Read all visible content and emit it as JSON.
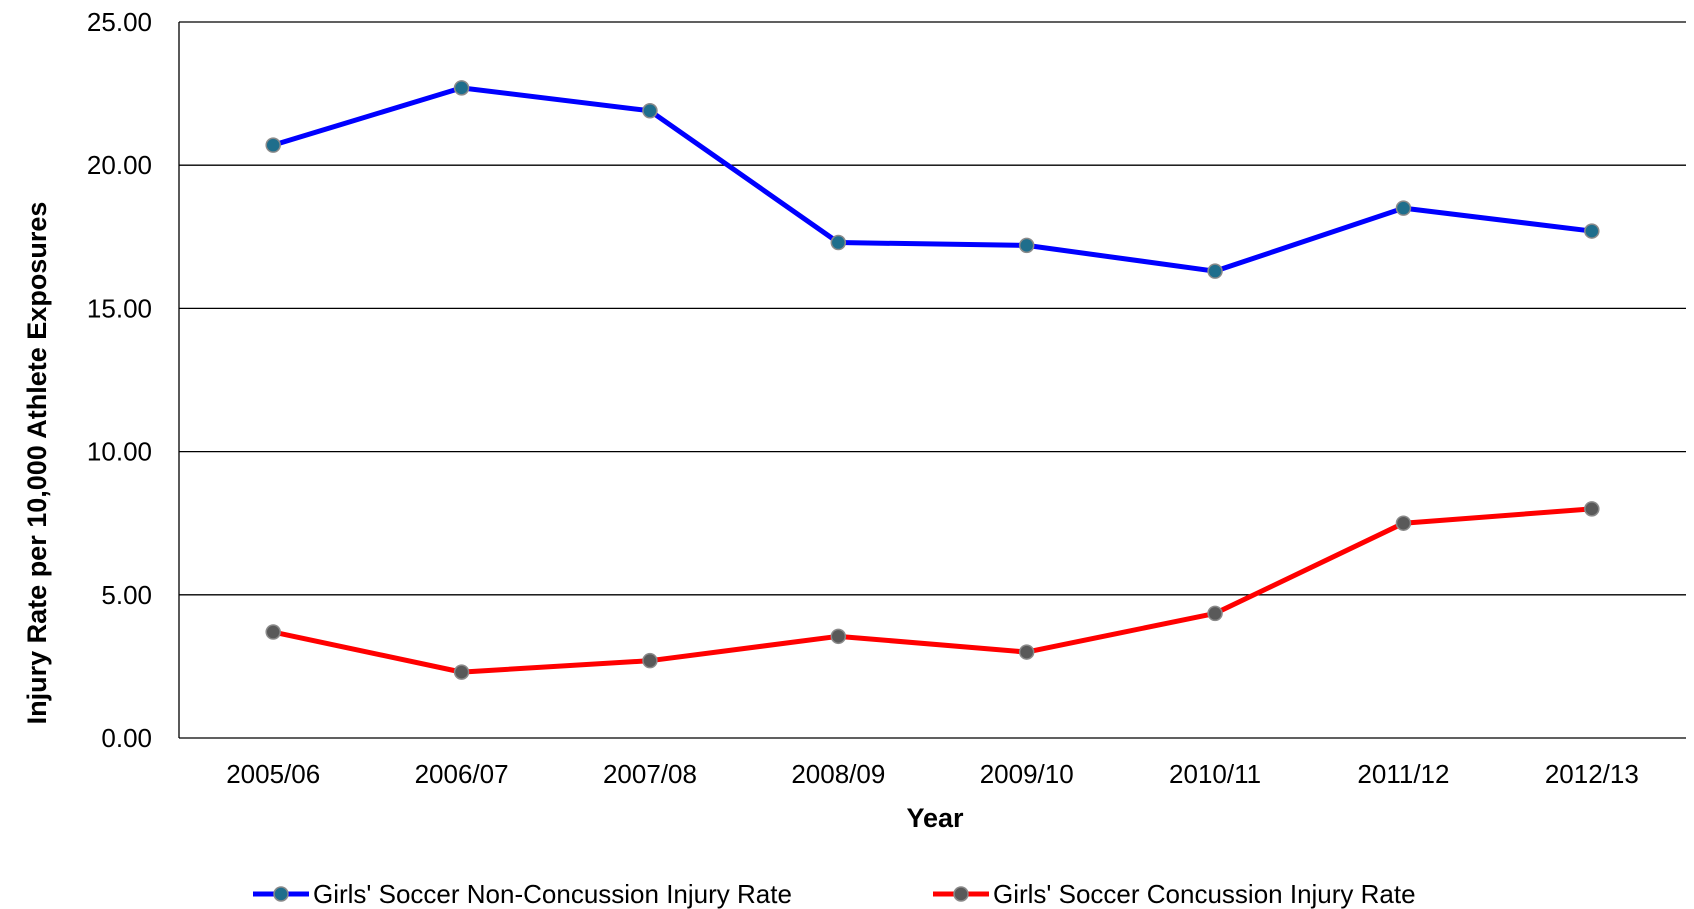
{
  "chart_data": {
    "type": "line",
    "title": "",
    "xlabel": "Year",
    "ylabel": "Injury Rate per 10,000 Athlete Exposures",
    "categories": [
      "2005/06",
      "2006/07",
      "2007/08",
      "2008/09",
      "2009/10",
      "2010/11",
      "2011/12",
      "2012/13"
    ],
    "ylim": [
      0,
      25
    ],
    "yticks": [
      "0.00",
      "5.00",
      "10.00",
      "15.00",
      "20.00",
      "25.00"
    ],
    "grid": "horizontal",
    "legend_position": "bottom",
    "series": [
      {
        "name": "Girls' Soccer Non-Concussion Injury Rate",
        "color": "#0000ff",
        "marker_color": "#1f6e8c",
        "values": [
          20.7,
          22.7,
          21.9,
          17.3,
          17.2,
          16.3,
          18.5,
          17.7
        ]
      },
      {
        "name": "Girls' Soccer Concussion Injury Rate",
        "color": "#ff0000",
        "marker_color": "#595959",
        "values": [
          3.7,
          2.3,
          2.7,
          3.55,
          3.0,
          4.35,
          7.5,
          8.0
        ]
      }
    ]
  }
}
